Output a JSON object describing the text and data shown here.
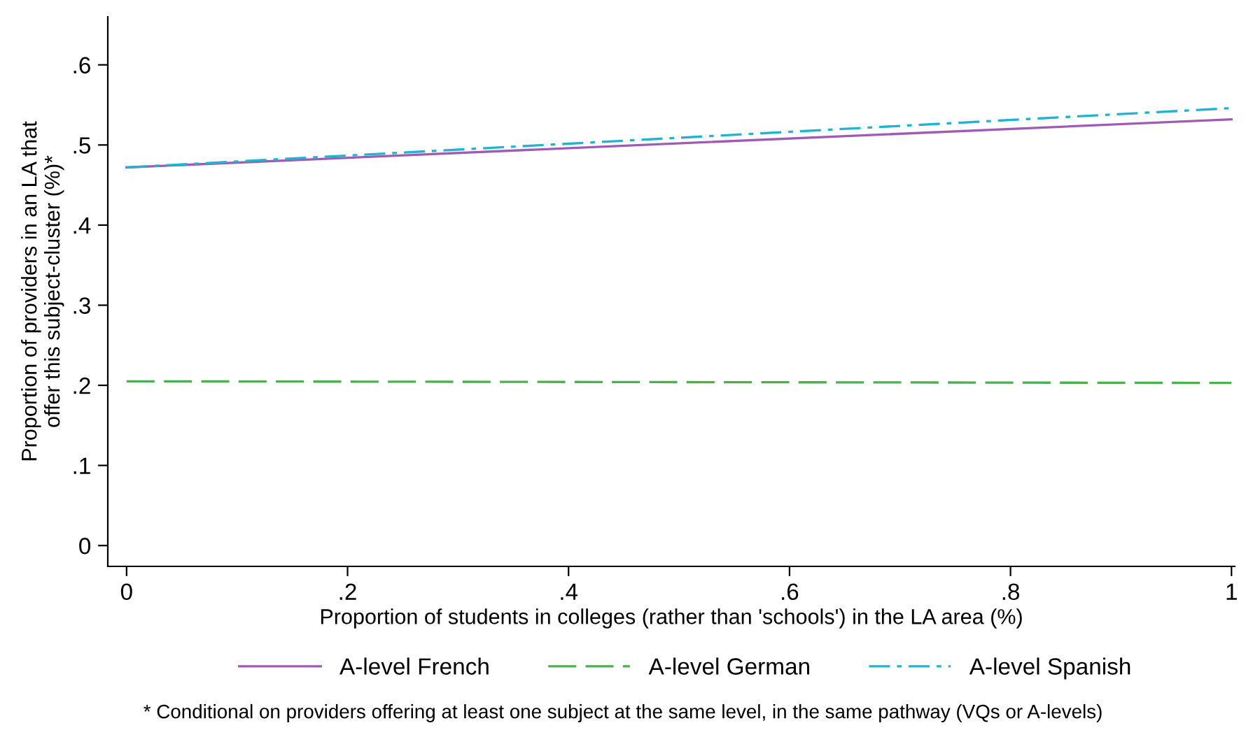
{
  "chart_data": {
    "type": "line",
    "xlabel": "Proportion of students in colleges (rather than 'schools') in the LA area (%)",
    "ylabel": "Proportion of providers in an LA that\noffer this subject-cluster (%)*",
    "x": [
      0,
      1
    ],
    "series": [
      {
        "name": "A-level French",
        "color": "#a05cb4",
        "values": [
          0.472,
          0.532
        ],
        "line_style": "solid"
      },
      {
        "name": "A-level German",
        "color": "#4cb050",
        "values": [
          0.205,
          0.203
        ],
        "line_style": "dashed"
      },
      {
        "name": "A-level Spanish",
        "color": "#1eb4d2",
        "values": [
          0.472,
          0.546
        ],
        "line_style": "dashdot"
      }
    ],
    "xlim": [
      -0.017,
      1.003
    ],
    "ylim": [
      -0.026,
      0.66
    ],
    "xticks": [
      0,
      {
        "value": 0.2,
        "label": ".2"
      },
      {
        "value": 0.4,
        "label": ".4"
      },
      {
        "value": 0.6,
        "label": ".6"
      },
      {
        "value": 0.8,
        "label": ".8"
      },
      1
    ],
    "yticks": [
      0,
      {
        "value": 0.1,
        "label": ".1"
      },
      {
        "value": 0.2,
        "label": ".2"
      },
      {
        "value": 0.3,
        "label": ".3"
      },
      {
        "value": 0.4,
        "label": ".4"
      },
      {
        "value": 0.5,
        "label": ".5"
      },
      {
        "value": 0.6,
        "label": ".6"
      }
    ],
    "grid": false,
    "legend": "bottom",
    "marker": "none",
    "annotations": [
      "* Conditional on providers offering at least one subject at the same level, in the same pathway (VQs or A-levels)"
    ]
  }
}
